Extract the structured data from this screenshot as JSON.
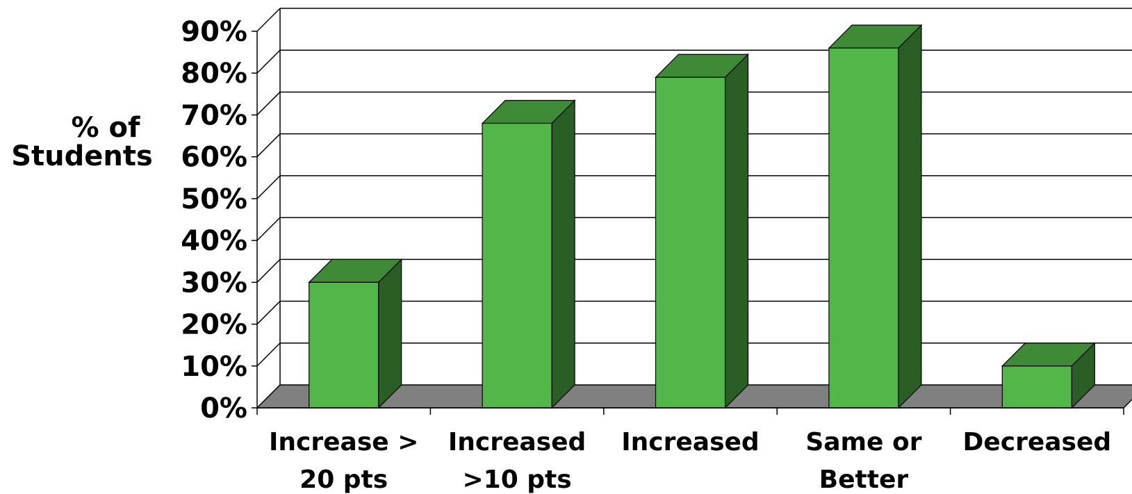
{
  "chart_data": {
    "type": "bar",
    "style": "3d-column",
    "categories": [
      [
        "Increase >",
        "20 pts"
      ],
      [
        "Increased",
        ">10 pts"
      ],
      [
        "Increased"
      ],
      [
        "Same or",
        "Better"
      ],
      [
        "Decreased"
      ]
    ],
    "values": [
      30,
      68,
      79,
      86,
      10
    ],
    "ylabel": [
      "% of",
      "Students"
    ],
    "ylim": [
      0,
      90
    ],
    "yticks": [
      "0%",
      "10%",
      "20%",
      "30%",
      "40%",
      "50%",
      "60%",
      "70%",
      "80%",
      "90%"
    ],
    "grid": true,
    "colors": {
      "bar_front": "#52b748",
      "bar_top": "#3e8a36",
      "bar_side": "#2a5e25",
      "floor": "#808080",
      "lines": "#000000"
    }
  }
}
